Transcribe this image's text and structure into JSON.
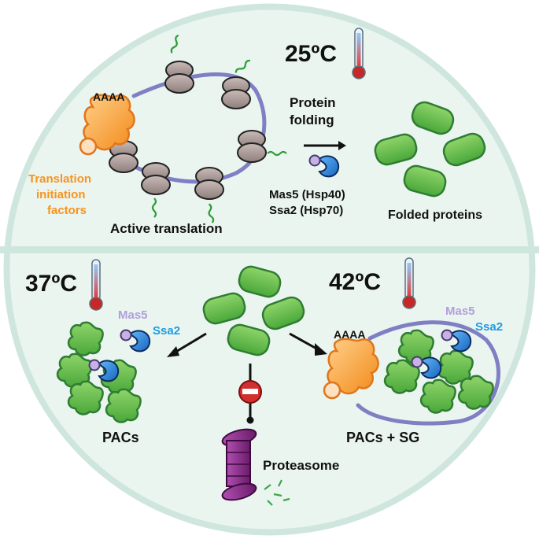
{
  "top_panel": {
    "temperature": "25ºC",
    "polyA": "AAAA",
    "initiation_factors_label": [
      "Translation",
      "initiation",
      "factors"
    ],
    "active_translation": "Active translation",
    "protein_folding": [
      "Protein",
      "folding"
    ],
    "chaperones": [
      "Mas5 (Hsp40)",
      "Ssa2 (Hsp70)"
    ],
    "folded_proteins": "Folded proteins"
  },
  "bottom_left": {
    "temperature": "37ºC",
    "mas5": "Mas5",
    "ssa2": "Ssa2",
    "result": "PACs"
  },
  "bottom_right": {
    "temperature": "42ºC",
    "polyA": "AAAA",
    "mas5": "Mas5",
    "ssa2": "Ssa2",
    "result": "PACs + SG"
  },
  "bottom_center": {
    "proteasome": "Proteasome"
  },
  "colors": {
    "background_ring": "#cfe6df",
    "panel_fill": "#e9f4ef",
    "ribosome": "#a39391",
    "mrna": "#7f7fc4",
    "orange": "#f7931e",
    "green": "#6abd45",
    "green_dark": "#2f7d32",
    "mas5": "#b39ddb",
    "ssa2": "#1e88e5",
    "proteasome": "#8e2a8e",
    "stop": "#d32f2f"
  }
}
